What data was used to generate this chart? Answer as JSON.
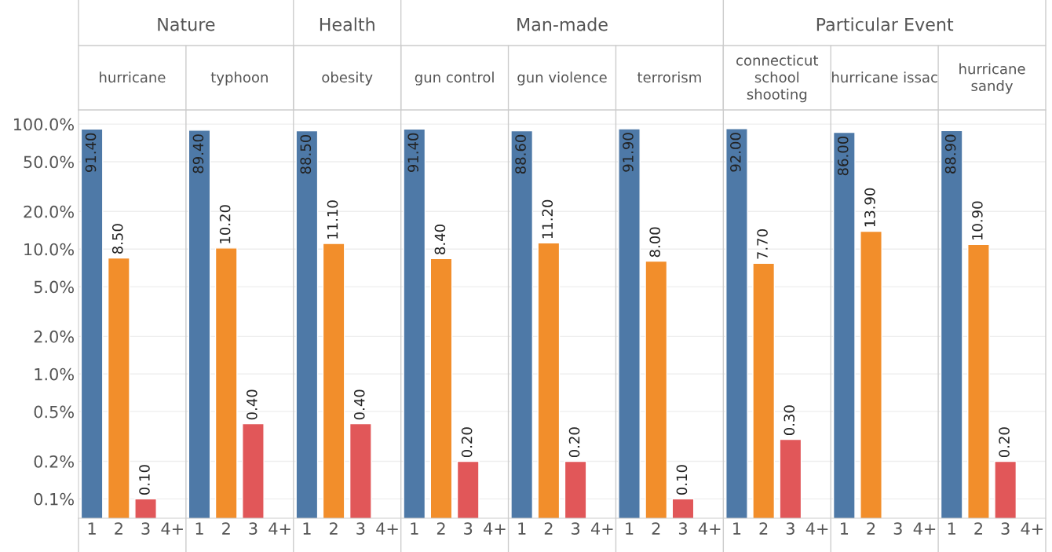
{
  "chart_data": {
    "type": "bar",
    "annotations": [
      "Nature",
      "Health",
      "Man-made",
      "Particular Event",
      "hurricane",
      "typhoon",
      "obesity",
      "gun control",
      "gun violence",
      "terrorism",
      "connecticut\nschool\nshooting",
      "hurricane issac",
      "hurricane\nsandy"
    ],
    "categories": [
      "1",
      "2",
      "3",
      "4+",
      "1",
      "2",
      "3",
      "4+",
      "1",
      "2",
      "3",
      "4+",
      "1",
      "2",
      "3",
      "4+",
      "1",
      "2",
      "3",
      "4+",
      "1",
      "2",
      "3",
      "4+",
      "1",
      "2",
      "3",
      "4+",
      "1",
      "2",
      "3",
      "4+",
      "1",
      "2",
      "3",
      "4+"
    ],
    "values": [
      91.4,
      8.5,
      0.1,
      null,
      89.4,
      10.2,
      0.4,
      null,
      88.5,
      11.1,
      0.4,
      null,
      91.4,
      8.4,
      0.2,
      null,
      88.6,
      11.2,
      0.2,
      null,
      91.9,
      8.0,
      0.1,
      null,
      92.0,
      7.7,
      0.3,
      null,
      86.0,
      13.9,
      null,
      null,
      88.9,
      10.9,
      0.2,
      null
    ],
    "value_labels": [
      "91.40",
      "8.50",
      "0.10",
      null,
      "89.40",
      "10.20",
      "0.40",
      null,
      "88.50",
      "11.10",
      "0.40",
      null,
      "91.40",
      "8.40",
      "0.20",
      null,
      "88.60",
      "11.20",
      "0.20",
      null,
      "91.90",
      "8.00",
      "0.10",
      null,
      "92.00",
      "7.70",
      "0.30",
      null,
      "86.00",
      "13.90",
      null,
      null,
      "88.90",
      "10.90",
      "0.20",
      null
    ],
    "colors": [
      "#4e79a7",
      "#f28e2b",
      "#e15759",
      "#e15759",
      "#4e79a7",
      "#f28e2b",
      "#e15759",
      "#e15759",
      "#4e79a7",
      "#f28e2b",
      "#e15759",
      "#e15759",
      "#4e79a7",
      "#f28e2b",
      "#e15759",
      "#e15759",
      "#4e79a7",
      "#f28e2b",
      "#e15759",
      "#e15759",
      "#4e79a7",
      "#f28e2b",
      "#e15759",
      "#e15759",
      "#4e79a7",
      "#f28e2b",
      "#e15759",
      "#e15759",
      "#4e79a7",
      "#f28e2b",
      "#e15759",
      "#e15759",
      "#4e79a7",
      "#f28e2b",
      "#e15759",
      "#e15759"
    ],
    "log": true,
    "ylim": [
      0.07,
      130
    ],
    "yticks": [
      {
        "value": 0.1,
        "label": "0.1%"
      },
      {
        "value": 0.2,
        "label": "0.2%"
      },
      {
        "value": 0.5,
        "label": "0.5%"
      },
      {
        "value": 1,
        "label": "1.0%"
      },
      {
        "value": 2,
        "label": "2.0%"
      },
      {
        "value": 5,
        "label": "5.0%"
      },
      {
        "value": 10,
        "label": "10.0%"
      },
      {
        "value": 20,
        "label": "20.0%"
      },
      {
        "value": 50,
        "label": "50.0%"
      },
      {
        "value": 100,
        "label": "100.0%"
      }
    ],
    "grid": "y"
  }
}
